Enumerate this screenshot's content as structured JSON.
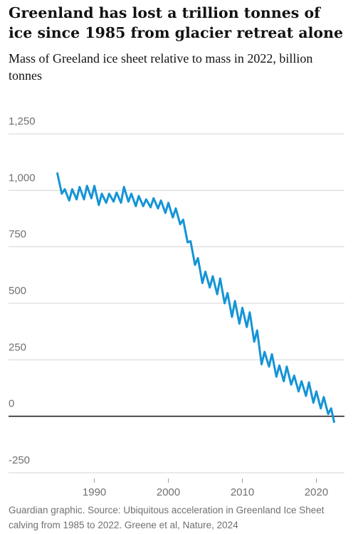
{
  "chart_data": {
    "type": "line",
    "title": "Greenland has lost a trillion tonnes of ice since 1985 from glacier retreat alone",
    "subtitle": "Mass of Greeland ice sheet relative to mass in 2022, billion tonnes",
    "source": "Guardian graphic. Source: Ubiquitous acceleration in Greenland Ice Sheet calving from 1985 to 2022. Greene et al, Nature, 2024",
    "x": [
      1985.0,
      1985.6,
      1986.0,
      1986.6,
      1987.0,
      1987.6,
      1988.0,
      1988.6,
      1989.0,
      1989.6,
      1990.0,
      1990.6,
      1991.0,
      1991.6,
      1992.0,
      1992.6,
      1993.0,
      1993.6,
      1994.0,
      1994.6,
      1995.0,
      1995.6,
      1996.0,
      1996.6,
      1997.0,
      1997.6,
      1998.0,
      1998.6,
      1999.0,
      1999.6,
      2000.0,
      2000.6,
      2001.0,
      2001.6,
      2002.0,
      2002.6,
      2003.0,
      2003.6,
      2004.0,
      2004.6,
      2005.0,
      2005.6,
      2006.0,
      2006.6,
      2007.0,
      2007.6,
      2008.0,
      2008.6,
      2009.0,
      2009.6,
      2010.0,
      2010.6,
      2011.0,
      2011.6,
      2012.0,
      2012.6,
      2013.0,
      2013.6,
      2014.0,
      2014.6,
      2015.0,
      2015.6,
      2016.0,
      2016.6,
      2017.0,
      2017.6,
      2018.0,
      2018.6,
      2019.0,
      2019.6,
      2020.0,
      2020.6,
      2021.0,
      2021.6,
      2022.0,
      2022.4
    ],
    "series": [
      {
        "name": "Mass",
        "color": "#1594d6",
        "values": [
          1075,
          985,
          1005,
          955,
          1005,
          960,
          1015,
          960,
          1020,
          965,
          1020,
          935,
          985,
          945,
          985,
          950,
          990,
          945,
          1015,
          950,
          985,
          930,
          975,
          930,
          960,
          925,
          965,
          920,
          955,
          900,
          945,
          880,
          920,
          850,
          870,
          770,
          775,
          670,
          700,
          590,
          640,
          570,
          620,
          540,
          610,
          500,
          545,
          440,
          510,
          410,
          480,
          395,
          460,
          330,
          380,
          230,
          285,
          220,
          275,
          175,
          225,
          155,
          220,
          140,
          180,
          110,
          155,
          90,
          150,
          60,
          110,
          35,
          85,
          10,
          35,
          -25
        ]
      }
    ],
    "xlim": [
      1978.4,
      2023.8
    ],
    "xticks": [
      1990,
      2000,
      2010,
      2020
    ],
    "ylim": [
      -250,
      1250
    ],
    "yticks": [
      {
        "value": 1250,
        "label": "1,250"
      },
      {
        "value": 1000,
        "label": "1,000"
      },
      750,
      500,
      250,
      0,
      -250
    ],
    "grid": true
  }
}
